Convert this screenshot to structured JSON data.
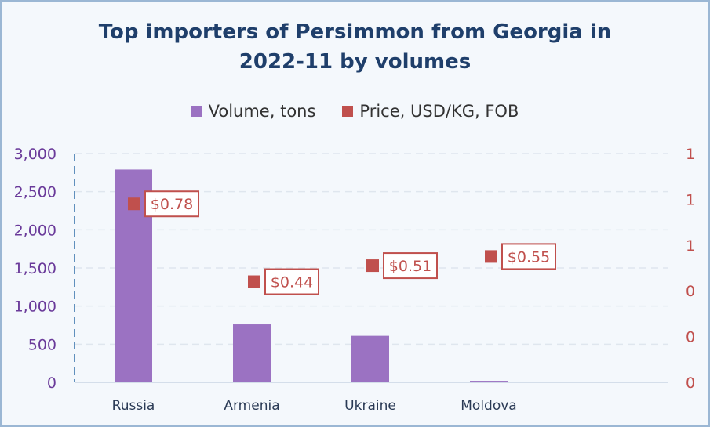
{
  "title_line1": "Top importers of Persimmon from Georgia in",
  "title_line2": "2022-11 by volumes",
  "legend": {
    "volume": "Volume, tons",
    "price": "Price, USD/KG, FOB"
  },
  "colors": {
    "bar": "#9b72c2",
    "price": "#c0504d",
    "title": "#1f3f6b"
  },
  "chart_data": {
    "type": "bar",
    "title": "Top importers of Persimmon from Georgia in 2022-11 by volumes",
    "categories": [
      "Russia",
      "Armenia",
      "Ukraine",
      "Moldova"
    ],
    "series": [
      {
        "name": "Volume, tons",
        "type": "bar",
        "axis": "left",
        "values": [
          2790,
          760,
          610,
          20
        ]
      },
      {
        "name": "Price, USD/KG, FOB",
        "type": "scatter",
        "axis": "right",
        "values": [
          0.78,
          0.44,
          0.51,
          0.55
        ],
        "labels": [
          "$0.78",
          "$0.44",
          "$0.51",
          "$0.55"
        ]
      }
    ],
    "y_left": {
      "ticks": [
        "3,000",
        "2,500",
        "2,000",
        "1,500",
        "1,000",
        "500",
        "0"
      ],
      "ylim": [
        0,
        3000
      ]
    },
    "y_right": {
      "ticks": [
        "1",
        "1",
        "1",
        "0",
        "0",
        "0"
      ],
      "ylim": [
        0,
        1
      ]
    },
    "grid": true,
    "legend_position": "top"
  }
}
